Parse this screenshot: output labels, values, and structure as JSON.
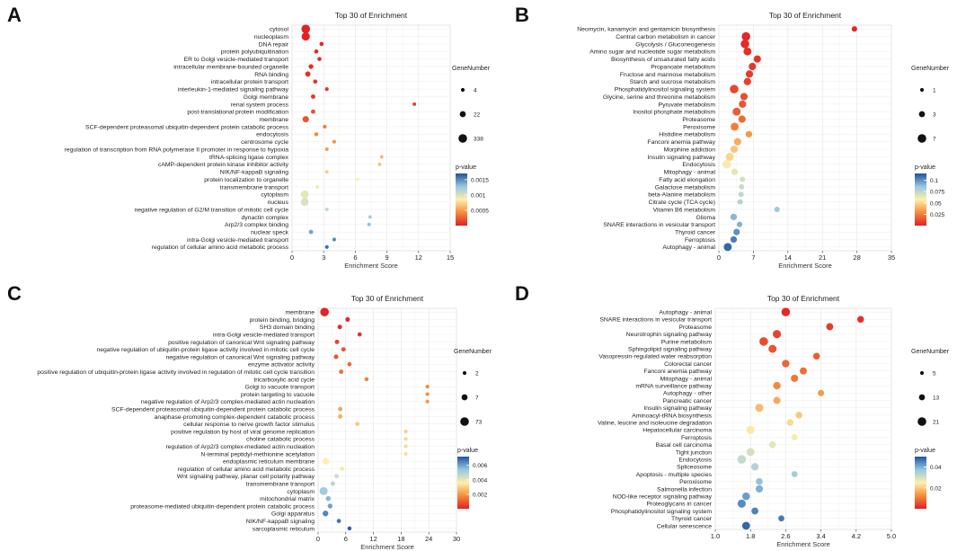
{
  "chart_data": [
    {
      "type": "scatter",
      "panel": "A",
      "title": "Top 30 of  Enrichment",
      "xlabel": "Enrichment Score",
      "xlim": [
        0,
        15
      ],
      "xticks": [
        "0",
        "3",
        "6",
        "9",
        "12",
        "15"
      ],
      "size_legend": {
        "title": "GeneNumber",
        "labels": [
          "4",
          "22",
          "338"
        ]
      },
      "color_legend": {
        "title": "p-value",
        "labels": [
          "0.0015",
          "0.001",
          "0.0005"
        ],
        "range": [
          0,
          0.0017
        ]
      },
      "points": [
        {
          "term": "cytosol",
          "x": 1.3,
          "p": 1e-05,
          "n": 338
        },
        {
          "term": "nucleoplasm",
          "x": 1.3,
          "p": 1e-05,
          "n": 300
        },
        {
          "term": "DNA repair",
          "x": 2.8,
          "p": 3e-05,
          "n": 16
        },
        {
          "term": "protein polyubiquitination",
          "x": 2.3,
          "p": 4e-05,
          "n": 18
        },
        {
          "term": "ER to Golgi vesicle-mediated transport",
          "x": 2.6,
          "p": 5e-05,
          "n": 16
        },
        {
          "term": "intracellular membrane-bounded organelle",
          "x": 1.8,
          "p": 6e-05,
          "n": 40
        },
        {
          "term": "RNA binding",
          "x": 1.5,
          "p": 7e-05,
          "n": 60
        },
        {
          "term": "intracellular protein transport",
          "x": 2.2,
          "p": 8e-05,
          "n": 18
        },
        {
          "term": "interleukin-1-mediated signaling pathway",
          "x": 3.3,
          "p": 9e-05,
          "n": 8
        },
        {
          "term": "Golgi membrane",
          "x": 2.0,
          "p": 0.0001,
          "n": 25
        },
        {
          "term": "renal system process",
          "x": 11.6,
          "p": 0.00011,
          "n": 4
        },
        {
          "term": "post-translational protein modification",
          "x": 2.0,
          "p": 0.00018,
          "n": 22
        },
        {
          "term": "membrane",
          "x": 1.3,
          "p": 0.0002,
          "n": 120
        },
        {
          "term": "SCF-dependent proteasomal ubiquitin-dependent protein catabolic process",
          "x": 3.1,
          "p": 0.00035,
          "n": 8
        },
        {
          "term": "endocytosis",
          "x": 2.3,
          "p": 0.0004,
          "n": 14
        },
        {
          "term": "centrosome cycle",
          "x": 4.0,
          "p": 0.00045,
          "n": 6
        },
        {
          "term": "regulation of transcription from RNA polymerase II promoter in response to hypoxia",
          "x": 3.3,
          "p": 0.0005,
          "n": 6
        },
        {
          "term": "tRNA-splicing ligase complex",
          "x": 8.5,
          "p": 0.0006,
          "n": 4
        },
        {
          "term": "cAMP-dependent protein kinase inhibitor activity",
          "x": 8.3,
          "p": 0.00065,
          "n": 4
        },
        {
          "term": "NIK/NF-kappaB signaling",
          "x": 3.3,
          "p": 0.0007,
          "n": 6
        },
        {
          "term": "protein localization to organelle",
          "x": 6.2,
          "p": 0.00085,
          "n": 4
        },
        {
          "term": "transmembrane transport",
          "x": 2.4,
          "p": 0.0009,
          "n": 8
        },
        {
          "term": "cytoplasm",
          "x": 1.2,
          "p": 0.00095,
          "n": 260
        },
        {
          "term": "nucleus",
          "x": 1.2,
          "p": 0.001,
          "n": 250
        },
        {
          "term": "negative regulation of G2/M transition of mitotic cell cycle",
          "x": 3.3,
          "p": 0.0011,
          "n": 6
        },
        {
          "term": "dynactin complex",
          "x": 7.4,
          "p": 0.0012,
          "n": 4
        },
        {
          "term": "Arp2/3 complex binding",
          "x": 7.3,
          "p": 0.0013,
          "n": 4
        },
        {
          "term": "nuclear speck",
          "x": 1.8,
          "p": 0.0014,
          "n": 22
        },
        {
          "term": "intra-Golgi vesicle-mediated transport",
          "x": 4.0,
          "p": 0.0015,
          "n": 6
        },
        {
          "term": "regulation of cellular amino acid metabolic process",
          "x": 3.3,
          "p": 0.0016,
          "n": 8
        }
      ]
    },
    {
      "type": "scatter",
      "panel": "B",
      "title": "Top 30 of  Enrichment",
      "xlabel": "Enrichment Score",
      "xlim": [
        0,
        35
      ],
      "xticks": [
        "0",
        "7",
        "14",
        "21",
        "28",
        "35"
      ],
      "size_legend": {
        "title": "GeneNumber",
        "labels": [
          "1",
          "3",
          "7"
        ]
      },
      "color_legend": {
        "title": "p-value",
        "labels": [
          "0.1",
          "0.075",
          "0.05",
          "0.025"
        ],
        "range": [
          0,
          0.115
        ]
      },
      "points": [
        {
          "term": "Neomycin, kanamycin and gentamicin biosynthesis",
          "x": 27.5,
          "p": 0.001,
          "n": 1
        },
        {
          "term": "Central carbon metabolism in cancer",
          "x": 5.5,
          "p": 0.002,
          "n": 5
        },
        {
          "term": "Glycolysis / Gluconeogenesis",
          "x": 5.3,
          "p": 0.003,
          "n": 5
        },
        {
          "term": "Amino sugar and nucleotide sugar metabolism",
          "x": 5.8,
          "p": 0.004,
          "n": 4
        },
        {
          "term": "Biosynthesis of unsaturated fatty acids",
          "x": 7.8,
          "p": 0.005,
          "n": 3
        },
        {
          "term": "Propanoate metabolism",
          "x": 6.8,
          "p": 0.006,
          "n": 3
        },
        {
          "term": "Fructose and mannose metabolism",
          "x": 6.2,
          "p": 0.007,
          "n": 3
        },
        {
          "term": "Starch and sucrose metabolism",
          "x": 5.8,
          "p": 0.008,
          "n": 3
        },
        {
          "term": "Phosphatidylinositol signaling system",
          "x": 3.1,
          "p": 0.01,
          "n": 5
        },
        {
          "term": "Glycine, serine and threonine metabolism",
          "x": 5.1,
          "p": 0.012,
          "n": 3
        },
        {
          "term": "Pyruvate metabolism",
          "x": 4.8,
          "p": 0.014,
          "n": 3
        },
        {
          "term": "Inositol phosphate metabolism",
          "x": 3.6,
          "p": 0.016,
          "n": 4
        },
        {
          "term": "Proteasome",
          "x": 4.7,
          "p": 0.02,
          "n": 3
        },
        {
          "term": "Peroxisome",
          "x": 3.2,
          "p": 0.025,
          "n": 4
        },
        {
          "term": "Histidine metabolism",
          "x": 6.1,
          "p": 0.032,
          "n": 2
        },
        {
          "term": "Fanconi anemia pathway",
          "x": 3.8,
          "p": 0.038,
          "n": 3
        },
        {
          "term": "Morphine addiction",
          "x": 3.1,
          "p": 0.045,
          "n": 3
        },
        {
          "term": "Insulin signaling pathway",
          "x": 2.2,
          "p": 0.05,
          "n": 4
        },
        {
          "term": "Endocytosis",
          "x": 1.6,
          "p": 0.06,
          "n": 5
        },
        {
          "term": "Mitophagy - animal",
          "x": 3.2,
          "p": 0.065,
          "n": 2
        },
        {
          "term": "Fatty acid elongation",
          "x": 4.8,
          "p": 0.07,
          "n": 1
        },
        {
          "term": "Galactose metabolism",
          "x": 4.6,
          "p": 0.072,
          "n": 1
        },
        {
          "term": "beta-Alanine metabolism",
          "x": 4.5,
          "p": 0.075,
          "n": 1
        },
        {
          "term": "Citrate cycle (TCA cycle)",
          "x": 4.3,
          "p": 0.078,
          "n": 1
        },
        {
          "term": "Vitamin B6 metabolism",
          "x": 11.8,
          "p": 0.085,
          "n": 1
        },
        {
          "term": "Glioma",
          "x": 3.0,
          "p": 0.09,
          "n": 2
        },
        {
          "term": "SNARE interactions in vesicular transport",
          "x": 4.2,
          "p": 0.092,
          "n": 1
        },
        {
          "term": "Thyroid cancer",
          "x": 3.6,
          "p": 0.1,
          "n": 2
        },
        {
          "term": "Ferroptosis",
          "x": 3.0,
          "p": 0.105,
          "n": 2
        },
        {
          "term": "Autophagy - animal",
          "x": 1.8,
          "p": 0.11,
          "n": 4
        }
      ]
    },
    {
      "type": "scatter",
      "panel": "C",
      "title": "Top 30 of  Enrichment",
      "xlabel": "Enrichment Score",
      "xlim": [
        0,
        30
      ],
      "xticks": [
        "0",
        "6",
        "12",
        "18",
        "24",
        "30"
      ],
      "size_legend": {
        "title": "GeneNumber",
        "labels": [
          "2",
          "7",
          "73"
        ]
      },
      "color_legend": {
        "title": "p-value",
        "labels": [
          "0.006",
          "0.004",
          "0.002"
        ],
        "range": [
          0,
          0.0072
        ]
      },
      "points": [
        {
          "term": "membrane",
          "x": 1.4,
          "p": 5e-05,
          "n": 73
        },
        {
          "term": "protein binding, bridging",
          "x": 6.4,
          "p": 0.0001,
          "n": 6
        },
        {
          "term": "SH3 domain binding",
          "x": 4.7,
          "p": 0.0002,
          "n": 6
        },
        {
          "term": "intra-Golgi vesicle-mediated transport",
          "x": 9.0,
          "p": 0.0003,
          "n": 4
        },
        {
          "term": "positive regulation of canonical Wnt signaling pathway",
          "x": 4.1,
          "p": 0.0006,
          "n": 6
        },
        {
          "term": "negative regulation of ubiquitin-protein ligase activity involved in mitotic cell cycle",
          "x": 5.5,
          "p": 0.0008,
          "n": 5
        },
        {
          "term": "negative regulation of canonical Wnt signaling pathway",
          "x": 3.9,
          "p": 0.0009,
          "n": 6
        },
        {
          "term": "enzyme activator activity",
          "x": 6.8,
          "p": 0.0012,
          "n": 4
        },
        {
          "term": "positive regulation of ubiquitin-protein ligase activity involved in regulation of mitotic cell cycle transition",
          "x": 5.0,
          "p": 0.0013,
          "n": 5
        },
        {
          "term": "tricarboxylic acid cycle",
          "x": 10.5,
          "p": 0.0016,
          "n": 3
        },
        {
          "term": "Golgi to vacuole transport",
          "x": 23.7,
          "p": 0.0018,
          "n": 2
        },
        {
          "term": "protein targeting to vacuole",
          "x": 23.7,
          "p": 0.0019,
          "n": 2
        },
        {
          "term": "negative regulation of Arp2/3 complex-mediated actin nucleation",
          "x": 23.7,
          "p": 0.002,
          "n": 2
        },
        {
          "term": "SCF-dependent proteasomal ubiquitin-dependent protein catabolic process",
          "x": 4.8,
          "p": 0.0022,
          "n": 5
        },
        {
          "term": "anaphase-promoting complex-dependent catabolic process",
          "x": 4.8,
          "p": 0.0024,
          "n": 5
        },
        {
          "term": "cellular response to nerve growth factor stimulus",
          "x": 8.5,
          "p": 0.0028,
          "n": 3
        },
        {
          "term": "positive regulation by host of viral genome replication",
          "x": 19.0,
          "p": 0.003,
          "n": 2
        },
        {
          "term": "choline catabolic process",
          "x": 19.0,
          "p": 0.0031,
          "n": 2
        },
        {
          "term": "regulation of Arp2/3 complex-mediated actin nucleation",
          "x": 19.0,
          "p": 0.0032,
          "n": 2
        },
        {
          "term": "N-terminal peptidyl-methionine acetylation",
          "x": 19.0,
          "p": 0.0033,
          "n": 2
        },
        {
          "term": "endoplasmic reticulum membrane",
          "x": 1.7,
          "p": 0.0036,
          "n": 30
        },
        {
          "term": "regulation of cellular amino acid metabolic process",
          "x": 5.2,
          "p": 0.0038,
          "n": 4
        },
        {
          "term": "Wnt signaling pathway, planar cell polarity pathway",
          "x": 4.0,
          "p": 0.0045,
          "n": 5
        },
        {
          "term": "transmembrane transport",
          "x": 3.2,
          "p": 0.0048,
          "n": 6
        },
        {
          "term": "cytoplasm",
          "x": 1.2,
          "p": 0.0052,
          "n": 60
        },
        {
          "term": "mitochondrial matrix",
          "x": 2.2,
          "p": 0.0056,
          "n": 10
        },
        {
          "term": "proteasome-mediated ubiquitin-dependent protein catabolic process",
          "x": 2.6,
          "p": 0.006,
          "n": 8
        },
        {
          "term": "Golgi apparatus",
          "x": 1.6,
          "p": 0.0064,
          "n": 18
        },
        {
          "term": "NIK/NF-kappaB signaling",
          "x": 4.5,
          "p": 0.0067,
          "n": 4
        },
        {
          "term": "sarcoplasmic reticulum",
          "x": 6.8,
          "p": 0.007,
          "n": 3
        }
      ]
    },
    {
      "type": "scatter",
      "panel": "D",
      "title": "Top 30 of  Enrichment",
      "xlabel": "Enrichment Score",
      "xlim": [
        1.0,
        5.0
      ],
      "xticks": [
        "1.0",
        "1.8",
        "2.6",
        "3.4",
        "4.2",
        "5.0"
      ],
      "size_legend": {
        "title": "GeneNumber",
        "labels": [
          "5",
          "13",
          "21"
        ]
      },
      "color_legend": {
        "title": "p-value",
        "labels": [
          "0.04",
          "0.02"
        ],
        "range": [
          0,
          0.05
        ]
      },
      "points": [
        {
          "term": "Autophagy - animal",
          "x": 2.6,
          "p": 0.001,
          "n": 19
        },
        {
          "term": "SNARE interactions in vesicular transport",
          "x": 4.3,
          "p": 0.002,
          "n": 9
        },
        {
          "term": "Proteasome",
          "x": 3.6,
          "p": 0.003,
          "n": 11
        },
        {
          "term": "Neurotrophin signaling pathway",
          "x": 2.4,
          "p": 0.004,
          "n": 17
        },
        {
          "term": "Purine metabolism",
          "x": 2.1,
          "p": 0.005,
          "n": 20
        },
        {
          "term": "Sphingolipid signaling pathway",
          "x": 2.3,
          "p": 0.006,
          "n": 16
        },
        {
          "term": "Vasopressin-regulated water reabsorption",
          "x": 3.3,
          "p": 0.007,
          "n": 9
        },
        {
          "term": "Colorectal cancer",
          "x": 2.6,
          "p": 0.008,
          "n": 13
        },
        {
          "term": "Fanconi anemia pathway",
          "x": 3.0,
          "p": 0.009,
          "n": 11
        },
        {
          "term": "Mitophagy - animal",
          "x": 2.8,
          "p": 0.01,
          "n": 12
        },
        {
          "term": "mRNA surveillance pathway",
          "x": 2.4,
          "p": 0.012,
          "n": 13
        },
        {
          "term": "Autophagy - other",
          "x": 3.4,
          "p": 0.014,
          "n": 7
        },
        {
          "term": "Pancreatic cancer",
          "x": 2.4,
          "p": 0.016,
          "n": 11
        },
        {
          "term": "Insulin signaling pathway",
          "x": 2.0,
          "p": 0.018,
          "n": 16
        },
        {
          "term": "Aminoacyl-tRNA biosynthesis",
          "x": 2.9,
          "p": 0.02,
          "n": 9
        },
        {
          "term": "Valine, leucine and isoleucine degradation",
          "x": 2.7,
          "p": 0.022,
          "n": 9
        },
        {
          "term": "Hepatocellular carcinoma",
          "x": 1.8,
          "p": 0.024,
          "n": 17
        },
        {
          "term": "Ferroptosis",
          "x": 2.8,
          "p": 0.026,
          "n": 7
        },
        {
          "term": "Basal cell carcinoma",
          "x": 2.3,
          "p": 0.028,
          "n": 10
        },
        {
          "term": "Tight junction",
          "x": 1.8,
          "p": 0.03,
          "n": 16
        },
        {
          "term": "Endocytosis",
          "x": 1.6,
          "p": 0.032,
          "n": 20
        },
        {
          "term": "Spliceosome",
          "x": 1.9,
          "p": 0.034,
          "n": 13
        },
        {
          "term": "Apoptosis - multiple species",
          "x": 2.8,
          "p": 0.036,
          "n": 6
        },
        {
          "term": "Peroxisome",
          "x": 2.0,
          "p": 0.038,
          "n": 10
        },
        {
          "term": "Salmonella infection",
          "x": 2.0,
          "p": 0.04,
          "n": 12
        },
        {
          "term": "NOD-like receptor signaling pathway",
          "x": 1.7,
          "p": 0.042,
          "n": 14
        },
        {
          "term": "Proteoglycans in cancer",
          "x": 1.6,
          "p": 0.044,
          "n": 17
        },
        {
          "term": "Phosphatidylinositol signaling system",
          "x": 1.9,
          "p": 0.045,
          "n": 10
        },
        {
          "term": "Thyroid cancer",
          "x": 2.5,
          "p": 0.046,
          "n": 6
        },
        {
          "term": "Cellular senescence",
          "x": 1.7,
          "p": 0.048,
          "n": 15
        }
      ]
    }
  ]
}
